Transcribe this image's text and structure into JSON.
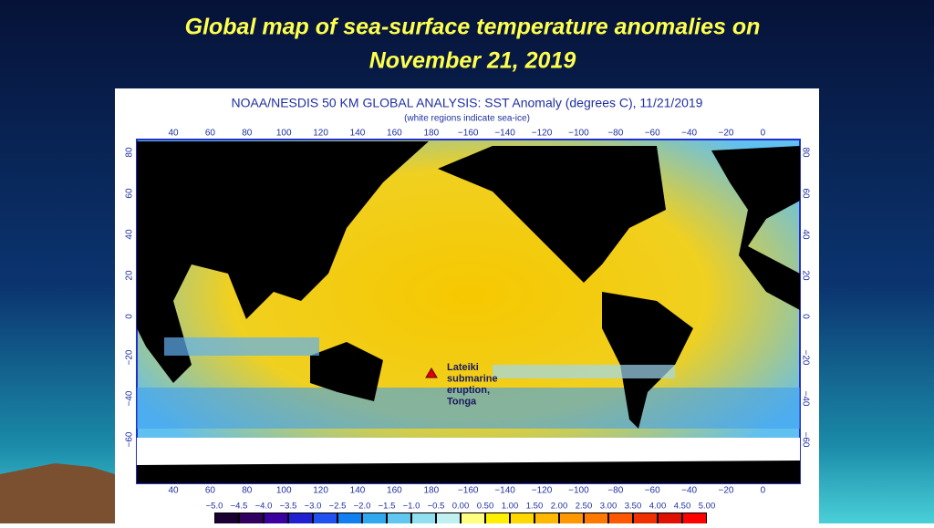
{
  "slide": {
    "title_line1": "Global map of sea-surface temperature anomalies on",
    "title_line2": "November 21, 2019"
  },
  "map": {
    "title": "NOAA/NESDIS 50 KM GLOBAL ANALYSIS: SST Anomaly (degrees C), 11/21/2019",
    "subtitle": "(white regions indicate sea-ice)",
    "lon_labels": [
      "40",
      "60",
      "80",
      "100",
      "120",
      "140",
      "160",
      "180",
      "−160",
      "−140",
      "−120",
      "−100",
      "−80",
      "−60",
      "−40",
      "−20",
      "0"
    ],
    "lat_labels": [
      "80",
      "60",
      "40",
      "20",
      "0",
      "−20",
      "−40",
      "−60"
    ],
    "colorbar_labels": [
      "−5.0",
      "−4.5",
      "−4.0",
      "−3.5",
      "−3.0",
      "−2.5",
      "−2.0",
      "−1.5",
      "−1.0",
      "−0.5",
      "0.00",
      "0.50",
      "1.00",
      "1.50",
      "2.00",
      "2.50",
      "3.00",
      "3.50",
      "4.00",
      "4.50",
      "5.00"
    ],
    "annotation": [
      "Lateiki",
      "submarine",
      "eruption,",
      "Tonga"
    ]
  }
}
